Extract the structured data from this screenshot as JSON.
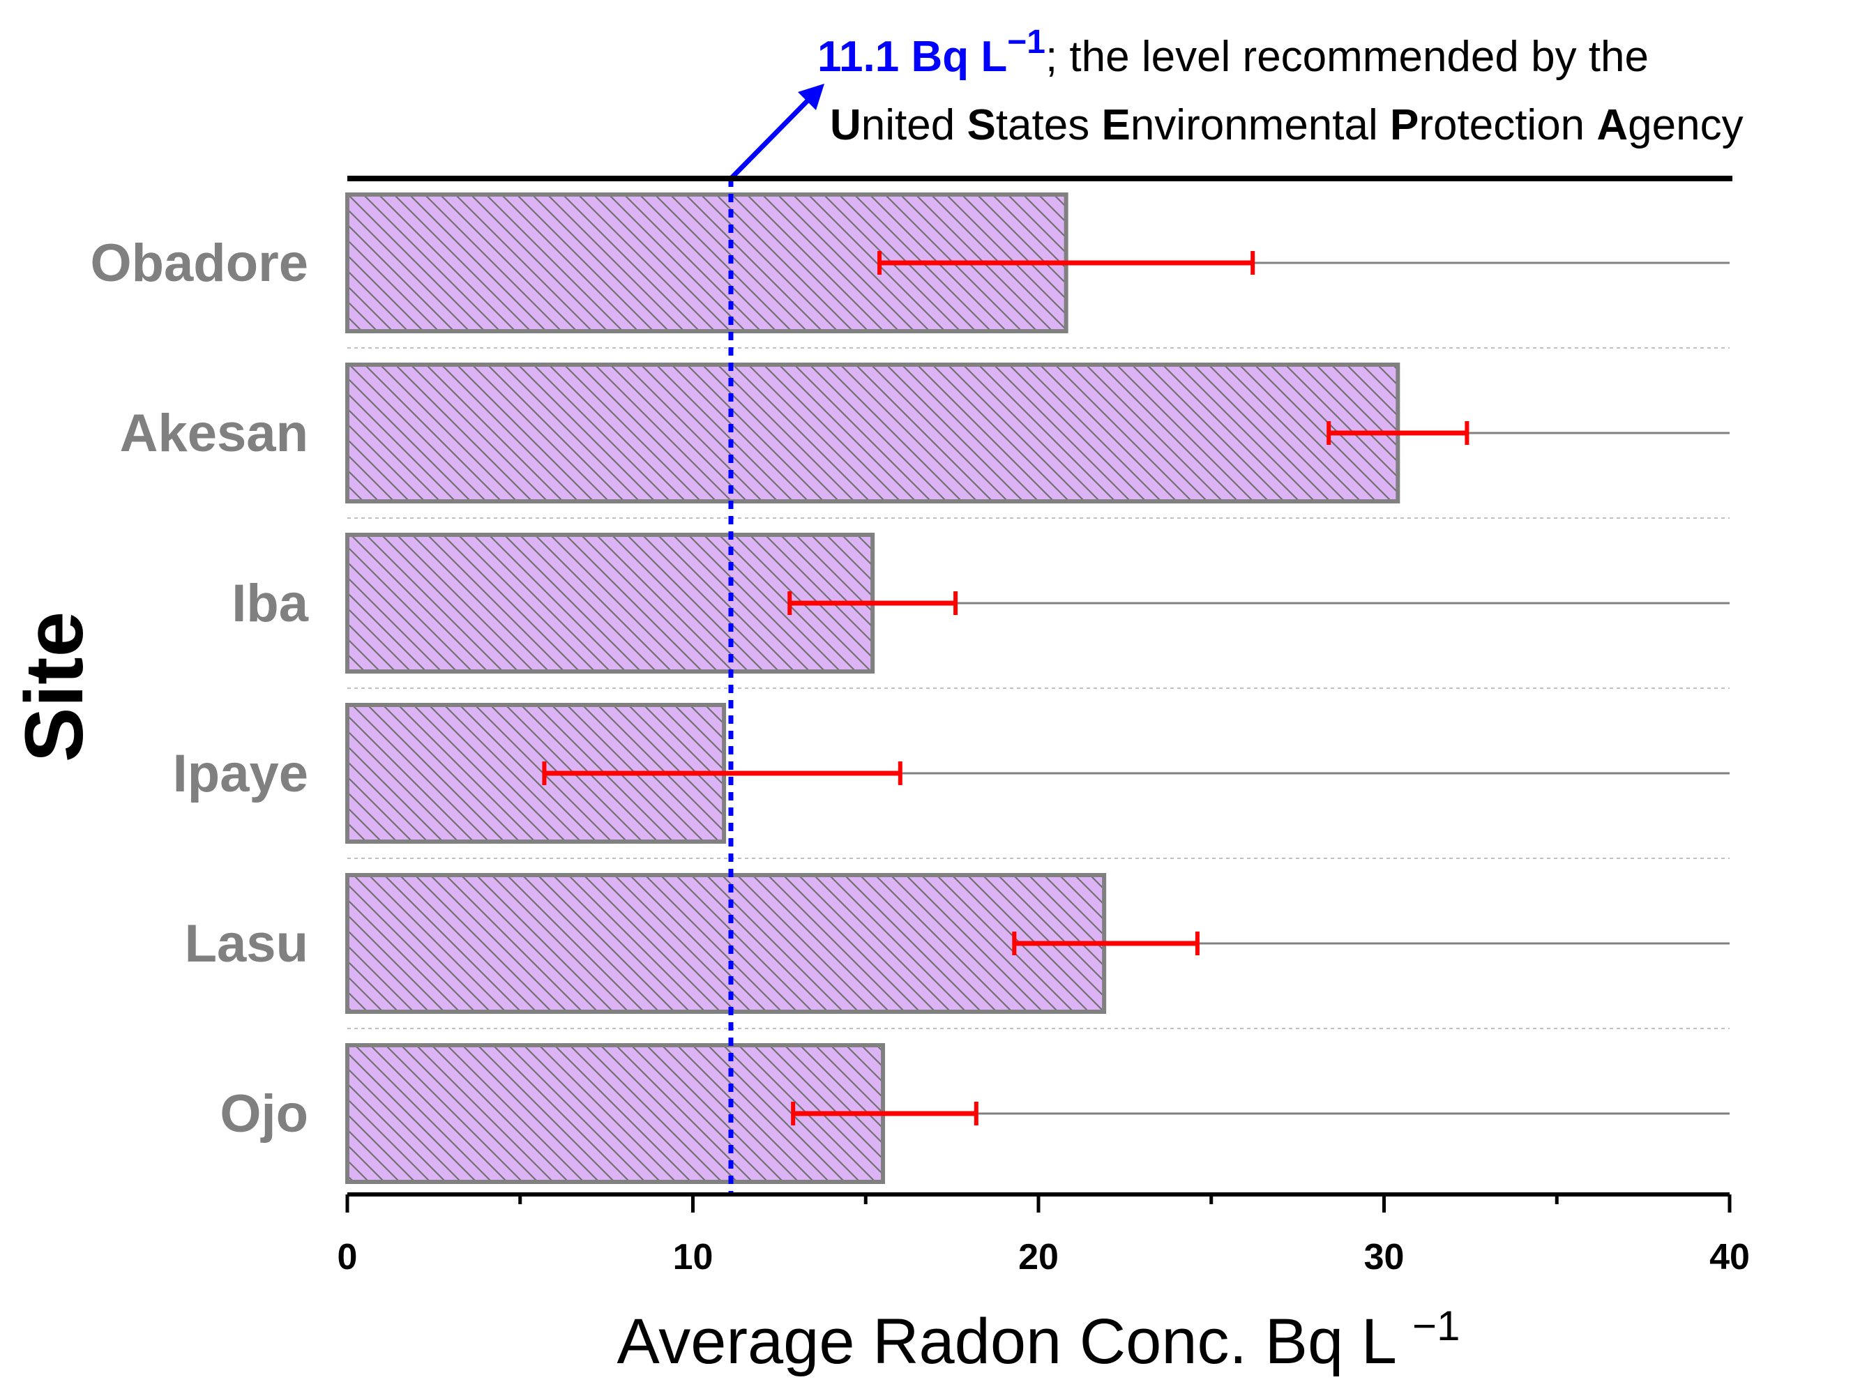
{
  "chart_data": {
    "type": "bar",
    "orientation": "horizontal",
    "categories": [
      "Obadore",
      "Akesan",
      "Iba",
      "Ipaye",
      "Lasu",
      "Ojo"
    ],
    "values": [
      20.8,
      30.4,
      15.2,
      10.9,
      21.9,
      15.5
    ],
    "error_low": [
      15.4,
      28.4,
      12.8,
      5.7,
      19.3,
      12.9
    ],
    "error_high": [
      26.2,
      32.4,
      17.6,
      16.0,
      24.6,
      18.2
    ],
    "xlabel": "Average Radon Conc. Bq L",
    "xlabel_sup": "−1",
    "ylabel": "Site",
    "xlim": [
      0,
      40
    ],
    "xticks": [
      0,
      10,
      20,
      30,
      40
    ],
    "reference_line": {
      "value": 11.1,
      "label_value": "11.1 Bq L",
      "label_sup": "−1",
      "label_rest": "; the level recommended by the",
      "agency_line": [
        {
          "bold": "U",
          "rest": "nited "
        },
        {
          "bold": "S",
          "rest": "tates "
        },
        {
          "bold": "E",
          "rest": "nvironmental "
        },
        {
          "bold": "P",
          "rest": "rotection "
        },
        {
          "bold": "A",
          "rest": "gency"
        }
      ]
    },
    "colors": {
      "bar_fill": "#dcb4f5",
      "bar_edge": "#808080",
      "hatch": "#707070",
      "error_bar": "#ff0000",
      "reference": "#0000ff",
      "axis": "#000000",
      "separator": "#c0c0c0"
    }
  }
}
